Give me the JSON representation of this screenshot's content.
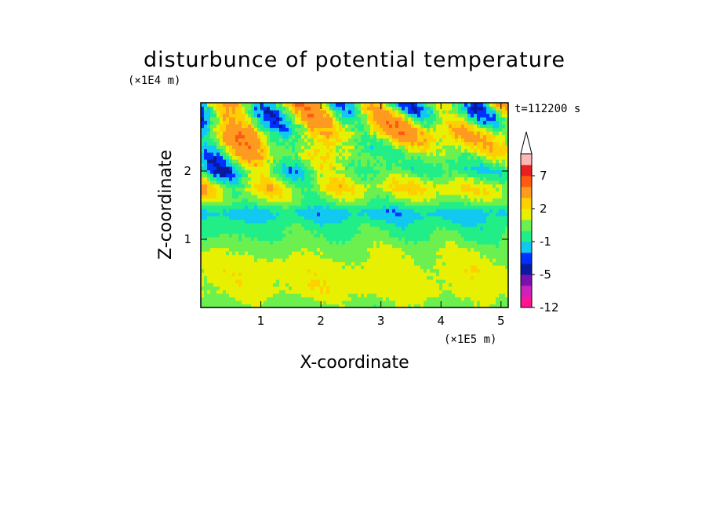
{
  "chart_data": {
    "type": "heatmap",
    "title": "disturbunce of potential temperature",
    "xlabel": "X-coordinate",
    "ylabel": "Z-coordinate",
    "x_unit": "(×1E5 m)",
    "y_unit": "(×1E4 m)",
    "time_label": "t=112200 s",
    "xlim": [
      0,
      5.12
    ],
    "ylim": [
      0,
      3.0
    ],
    "x_ticks": [
      1,
      2,
      3,
      4,
      5
    ],
    "y_ticks": [
      1,
      2
    ],
    "grid": false,
    "legend_placement": "right",
    "colorbar": {
      "levels": [
        -12,
        -9,
        -7,
        -5,
        -3,
        -2,
        -1,
        0,
        1,
        2,
        3,
        5,
        7,
        9,
        11
      ],
      "tick_labels": [
        "-12",
        "-5",
        "-1",
        "2",
        "7"
      ],
      "tick_values": [
        -12,
        -5,
        -1,
        2,
        7
      ],
      "colors": [
        "#ff1493",
        "#cc22bb",
        "#7a10b0",
        "#0a1aa0",
        "#0030ff",
        "#10c8f0",
        "#22ee88",
        "#6cf050",
        "#e6f000",
        "#ffd000",
        "#ff9a20",
        "#ff5a10",
        "#e82020",
        "#ffb6b6"
      ],
      "extend": "max"
    },
    "z_profile": [
      {
        "z": 0.05,
        "value": 0.6
      },
      {
        "z": 0.25,
        "value": 1.5
      },
      {
        "z": 0.55,
        "value": 1.5
      },
      {
        "z": 0.85,
        "value": 0.8
      },
      {
        "z": 1.0,
        "value": 0.2
      },
      {
        "z": 1.2,
        "value": -0.5
      },
      {
        "z": 1.4,
        "value": -1.6
      },
      {
        "z": 1.55,
        "value": 0.4
      },
      {
        "z": 1.75,
        "value": 1.8
      },
      {
        "z": 2.0,
        "value": -0.3
      },
      {
        "z": 2.25,
        "value": 0.9
      },
      {
        "z": 2.55,
        "value": 2.1
      },
      {
        "z": 2.85,
        "value": 0.5
      }
    ]
  }
}
